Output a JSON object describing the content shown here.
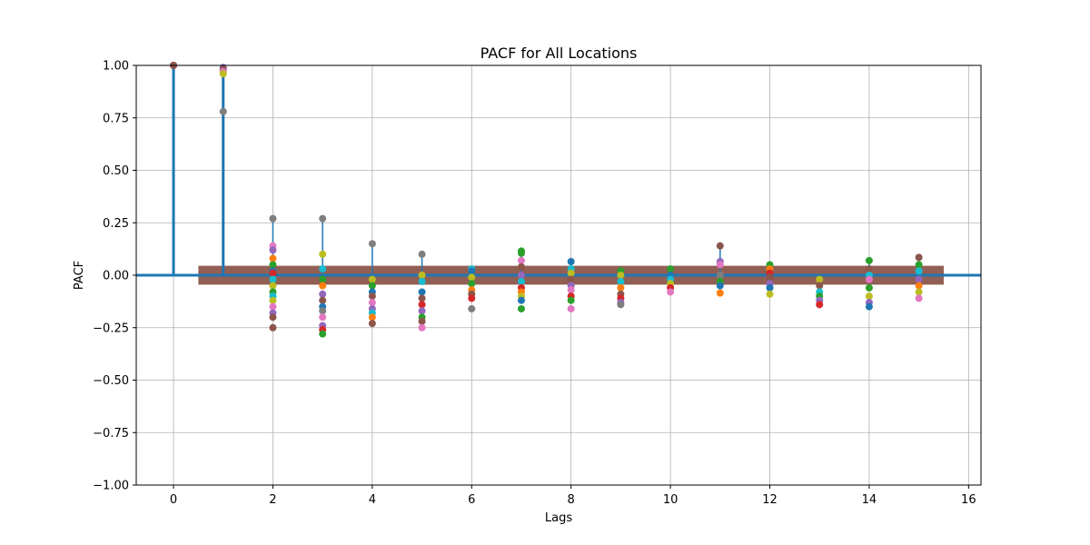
{
  "chart_data": {
    "type": "scatter",
    "title": "PACF for All Locations",
    "xlabel": "Lags",
    "ylabel": "PACF",
    "xlim": [
      -0.75,
      16.25
    ],
    "ylim": [
      -1.0,
      1.0
    ],
    "xticks": [
      0,
      2,
      4,
      6,
      8,
      10,
      12,
      14,
      16
    ],
    "yticks": [
      -1.0,
      -0.75,
      -0.5,
      -0.25,
      0.0,
      0.25,
      0.5,
      0.75,
      1.0
    ],
    "ytick_labels": [
      "−1.00",
      "−0.75",
      "−0.50",
      "−0.25",
      "0.00",
      "0.25",
      "0.50",
      "0.75",
      "1.00"
    ],
    "grid": true,
    "confidence_band": {
      "x_start": 0.5,
      "x_end": 15.5,
      "lower": -0.045,
      "upper": 0.045,
      "color": "#8c564b"
    },
    "stem_color": "#1f77b4",
    "lags": [
      0,
      1,
      2,
      3,
      4,
      5,
      6,
      7,
      8,
      9,
      10,
      11,
      12,
      13,
      14,
      15
    ],
    "stem_heights": [
      1.0,
      0.98,
      0.27,
      0.27,
      0.15,
      0.1,
      0.03,
      0.11,
      0.065,
      0.02,
      0.03,
      0.14,
      0.05,
      -0.02,
      0.07,
      0.085
    ],
    "points": [
      {
        "lag": 0,
        "values": [
          1.0,
          1.0,
          1.0
        ],
        "colors": [
          "#1f77b4",
          "#d62728",
          "#8c564b"
        ]
      },
      {
        "lag": 1,
        "values": [
          0.99,
          0.98,
          0.97,
          0.96,
          0.78
        ],
        "colors": [
          "#9467bd",
          "#8c564b",
          "#e377c2",
          "#bcbd22",
          "#7f7f7f"
        ]
      },
      {
        "lag": 2,
        "values": [
          0.27,
          0.14,
          0.12,
          0.08,
          0.05,
          0.02,
          0.01,
          -0.02,
          -0.05,
          -0.08,
          -0.1,
          -0.12,
          -0.15,
          -0.18,
          -0.2,
          -0.25
        ],
        "colors": [
          "#7f7f7f",
          "#e377c2",
          "#9467bd",
          "#ff7f0e",
          "#2ca02c",
          "#1f77b4",
          "#d62728",
          "#17becf",
          "#bcbd22",
          "#2ca02c",
          "#17becf",
          "#bcbd22",
          "#e377c2",
          "#9467bd",
          "#8c564b",
          "#8c564b"
        ]
      },
      {
        "lag": 3,
        "values": [
          0.27,
          0.1,
          0.03,
          -0.02,
          -0.05,
          -0.09,
          -0.12,
          -0.15,
          -0.17,
          -0.2,
          -0.24,
          -0.26,
          -0.28
        ],
        "colors": [
          "#7f7f7f",
          "#bcbd22",
          "#17becf",
          "#2ca02c",
          "#ff7f0e",
          "#9467bd",
          "#8c564b",
          "#1f77b4",
          "#7f7f7f",
          "#e377c2",
          "#9467bd",
          "#d62728",
          "#2ca02c"
        ]
      },
      {
        "lag": 4,
        "values": [
          0.15,
          -0.02,
          -0.05,
          -0.08,
          -0.1,
          -0.13,
          -0.16,
          -0.18,
          -0.2,
          -0.23
        ],
        "colors": [
          "#7f7f7f",
          "#bcbd22",
          "#2ca02c",
          "#1f77b4",
          "#8c564b",
          "#e377c2",
          "#9467bd",
          "#17becf",
          "#ff7f0e",
          "#8c564b"
        ]
      },
      {
        "lag": 5,
        "values": [
          0.1,
          0.0,
          -0.03,
          -0.08,
          -0.11,
          -0.14,
          -0.17,
          -0.2,
          -0.22,
          -0.25
        ],
        "colors": [
          "#7f7f7f",
          "#bcbd22",
          "#17becf",
          "#1f77b4",
          "#8c564b",
          "#d62728",
          "#9467bd",
          "#2ca02c",
          "#8c564b",
          "#e377c2"
        ]
      },
      {
        "lag": 6,
        "values": [
          0.03,
          0.02,
          -0.01,
          -0.04,
          -0.07,
          -0.09,
          -0.11,
          -0.16
        ],
        "colors": [
          "#17becf",
          "#1f77b4",
          "#bcbd22",
          "#2ca02c",
          "#ff7f0e",
          "#8c564b",
          "#d62728",
          "#7f7f7f"
        ]
      },
      {
        "lag": 7,
        "values": [
          0.115,
          0.105,
          0.07,
          0.04,
          0.0,
          -0.03,
          -0.06,
          -0.08,
          -0.1,
          -0.12,
          -0.16
        ],
        "colors": [
          "#2ca02c",
          "#2ca02c",
          "#e377c2",
          "#8c564b",
          "#9467bd",
          "#17becf",
          "#d62728",
          "#ff7f0e",
          "#bcbd22",
          "#1f77b4",
          "#2ca02c"
        ]
      },
      {
        "lag": 8,
        "values": [
          0.065,
          0.03,
          0.01,
          -0.02,
          -0.05,
          -0.07,
          -0.1,
          -0.12,
          -0.16
        ],
        "colors": [
          "#1f77b4",
          "#17becf",
          "#bcbd22",
          "#8c564b",
          "#9467bd",
          "#e377c2",
          "#d62728",
          "#2ca02c",
          "#e377c2"
        ]
      },
      {
        "lag": 9,
        "values": [
          0.02,
          0.0,
          -0.03,
          -0.06,
          -0.09,
          -0.11,
          -0.13,
          -0.14
        ],
        "colors": [
          "#2ca02c",
          "#bcbd22",
          "#17becf",
          "#ff7f0e",
          "#8c564b",
          "#d62728",
          "#9467bd",
          "#7f7f7f"
        ]
      },
      {
        "lag": 10,
        "values": [
          0.03,
          0.0,
          -0.02,
          -0.04,
          -0.06,
          -0.08
        ],
        "colors": [
          "#2ca02c",
          "#1f77b4",
          "#17becf",
          "#bcbd22",
          "#d62728",
          "#e377c2"
        ]
      },
      {
        "lag": 11,
        "values": [
          0.14,
          0.065,
          0.05,
          0.0,
          -0.03,
          -0.05,
          -0.085
        ],
        "colors": [
          "#8c564b",
          "#9467bd",
          "#e377c2",
          "#7f7f7f",
          "#2ca02c",
          "#1f77b4",
          "#ff7f0e"
        ]
      },
      {
        "lag": 12,
        "values": [
          0.05,
          0.03,
          0.01,
          -0.01,
          -0.04,
          -0.06,
          -0.09
        ],
        "colors": [
          "#2ca02c",
          "#ff7f0e",
          "#d62728",
          "#8c564b",
          "#9467bd",
          "#1f77b4",
          "#bcbd22"
        ]
      },
      {
        "lag": 13,
        "values": [
          -0.02,
          -0.05,
          -0.08,
          -0.1,
          -0.12,
          -0.14
        ],
        "colors": [
          "#bcbd22",
          "#8c564b",
          "#17becf",
          "#2ca02c",
          "#9467bd",
          "#d62728"
        ]
      },
      {
        "lag": 14,
        "values": [
          0.07,
          0.03,
          0.0,
          -0.02,
          -0.06,
          -0.1,
          -0.13,
          -0.15
        ],
        "colors": [
          "#2ca02c",
          "#8c564b",
          "#17becf",
          "#e377c2",
          "#2ca02c",
          "#bcbd22",
          "#9467bd",
          "#1f77b4"
        ]
      },
      {
        "lag": 15,
        "values": [
          0.085,
          0.05,
          0.02,
          -0.02,
          -0.05,
          -0.08,
          -0.11
        ],
        "colors": [
          "#8c564b",
          "#2ca02c",
          "#17becf",
          "#9467bd",
          "#ff7f0e",
          "#bcbd22",
          "#e377c2"
        ]
      }
    ]
  }
}
